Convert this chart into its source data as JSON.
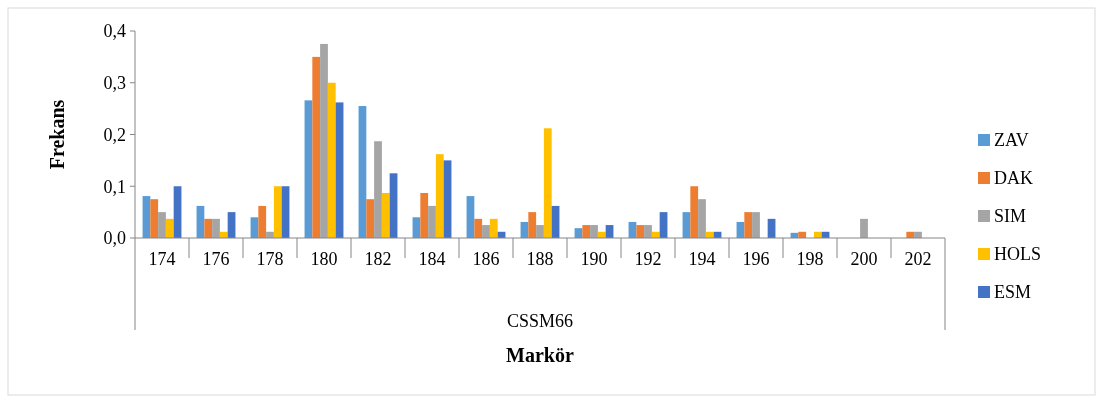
{
  "chart_data": {
    "type": "bar",
    "ylabel": "Frekans",
    "xlabel": "Markör",
    "annotations": [
      "CSSM66"
    ],
    "categories": [
      "174",
      "176",
      "178",
      "180",
      "182",
      "184",
      "186",
      "188",
      "190",
      "192",
      "194",
      "196",
      "198",
      "200",
      "202"
    ],
    "series": [
      {
        "name": "ZAV",
        "color": "#5b9bd5",
        "values": [
          0.081,
          0.062,
          0.04,
          0.266,
          0.255,
          0.04,
          0.081,
          0.031,
          0.019,
          0.031,
          0.05,
          0.031,
          0.01,
          null,
          null
        ]
      },
      {
        "name": "DAK",
        "color": "#ed7d31",
        "values": [
          0.075,
          0.037,
          0.062,
          0.35,
          0.075,
          0.087,
          0.037,
          0.05,
          0.025,
          0.025,
          0.1,
          0.05,
          0.012,
          null,
          0.012
        ]
      },
      {
        "name": "SIM",
        "color": "#a5a5a5",
        "values": [
          0.05,
          0.037,
          0.012,
          0.375,
          0.187,
          0.062,
          0.025,
          0.025,
          0.025,
          0.025,
          0.075,
          0.05,
          null,
          0.037,
          0.012
        ]
      },
      {
        "name": "HOLS",
        "color": "#ffc000",
        "values": [
          0.037,
          0.012,
          0.1,
          0.3,
          0.087,
          0.162,
          0.037,
          0.212,
          0.012,
          0.012,
          0.012,
          null,
          0.012,
          null,
          null
        ]
      },
      {
        "name": "ESM",
        "color": "#4472c4",
        "values": [
          0.1,
          0.05,
          0.1,
          0.262,
          0.125,
          0.15,
          0.012,
          0.062,
          0.025,
          0.05,
          0.012,
          0.037,
          0.012,
          null,
          null
        ]
      }
    ],
    "ylim": [
      0,
      0.4
    ],
    "yticks": [
      {
        "value": 0,
        "label": "0,0"
      },
      {
        "value": 0.1,
        "label": "0,1"
      },
      {
        "value": 0.2,
        "label": "0,2"
      },
      {
        "value": 0.3,
        "label": "0,3"
      },
      {
        "value": 0.4,
        "label": "0,4"
      }
    ],
    "grid": false,
    "legend": "right"
  }
}
